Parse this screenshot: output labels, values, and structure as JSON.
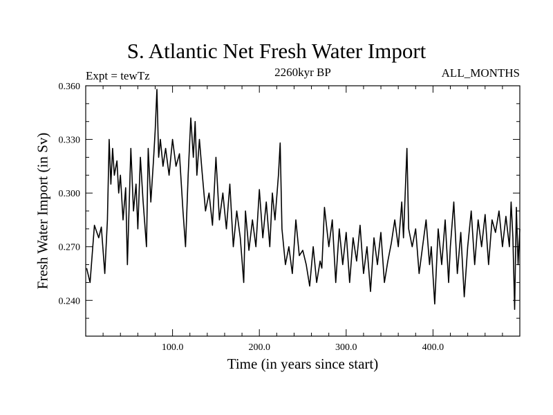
{
  "chart_data": {
    "type": "line",
    "title": "S. Atlantic Net Fresh Water Import",
    "subtitle": "2260kyr BP",
    "left_label": "Expt = tewTz",
    "right_label": "ALL_MONTHS",
    "xlabel": "Time (in years since start)",
    "ylabel": "Fresh Water Import (in Sv)",
    "xlim": [
      0,
      500
    ],
    "ylim": [
      0.22,
      0.36
    ],
    "xticks": [
      100,
      200,
      300,
      400
    ],
    "xtick_labels": [
      "100.0",
      "200.0",
      "300.0",
      "400.0"
    ],
    "yticks": [
      0.24,
      0.27,
      0.3,
      0.33,
      0.36
    ],
    "ytick_labels": [
      "0.240",
      "0.270",
      "0.300",
      "0.330",
      "0.360"
    ],
    "grid": false,
    "series": [
      {
        "name": "Fresh Water Import",
        "x": [
          1,
          5,
          10,
          15,
          18,
          22,
          25,
          27,
          29,
          31,
          33,
          36,
          38,
          40,
          43,
          46,
          48,
          52,
          55,
          58,
          60,
          63,
          66,
          70,
          72,
          75,
          78,
          80,
          82,
          84,
          86,
          89,
          92,
          96,
          100,
          104,
          108,
          112,
          115,
          118,
          121,
          124,
          126,
          128,
          131,
          134,
          138,
          142,
          146,
          150,
          154,
          158,
          162,
          166,
          170,
          174,
          178,
          182,
          184,
          188,
          192,
          196,
          200,
          204,
          208,
          212,
          215,
          218,
          222,
          224,
          226,
          230,
          234,
          238,
          242,
          246,
          250,
          254,
          258,
          262,
          266,
          270,
          272,
          275,
          280,
          284,
          288,
          292,
          296,
          300,
          304,
          308,
          312,
          316,
          320,
          324,
          328,
          332,
          336,
          340,
          344,
          348,
          352,
          356,
          360,
          364,
          366,
          368,
          370,
          372,
          376,
          380,
          384,
          388,
          392,
          396,
          398,
          402,
          406,
          410,
          414,
          418,
          420,
          424,
          428,
          432,
          436,
          440,
          444,
          448,
          452,
          456,
          460,
          464,
          468,
          472,
          476,
          480,
          484,
          488,
          490,
          492,
          494,
          496,
          498,
          500
        ],
        "values": [
          0.258,
          0.25,
          0.282,
          0.275,
          0.281,
          0.255,
          0.285,
          0.33,
          0.305,
          0.325,
          0.31,
          0.318,
          0.3,
          0.31,
          0.285,
          0.303,
          0.26,
          0.325,
          0.29,
          0.305,
          0.28,
          0.32,
          0.296,
          0.27,
          0.325,
          0.295,
          0.318,
          0.335,
          0.358,
          0.32,
          0.33,
          0.315,
          0.325,
          0.31,
          0.33,
          0.315,
          0.322,
          0.29,
          0.27,
          0.31,
          0.342,
          0.32,
          0.34,
          0.31,
          0.33,
          0.312,
          0.29,
          0.3,
          0.282,
          0.32,
          0.285,
          0.3,
          0.28,
          0.305,
          0.27,
          0.29,
          0.275,
          0.25,
          0.29,
          0.268,
          0.285,
          0.27,
          0.302,
          0.275,
          0.295,
          0.27,
          0.3,
          0.285,
          0.31,
          0.328,
          0.28,
          0.26,
          0.27,
          0.255,
          0.285,
          0.265,
          0.268,
          0.26,
          0.248,
          0.27,
          0.25,
          0.262,
          0.258,
          0.292,
          0.27,
          0.285,
          0.25,
          0.28,
          0.26,
          0.278,
          0.25,
          0.275,
          0.262,
          0.282,
          0.255,
          0.27,
          0.245,
          0.275,
          0.26,
          0.278,
          0.25,
          0.262,
          0.272,
          0.285,
          0.27,
          0.295,
          0.275,
          0.3,
          0.325,
          0.28,
          0.27,
          0.28,
          0.255,
          0.27,
          0.285,
          0.26,
          0.27,
          0.238,
          0.28,
          0.26,
          0.285,
          0.25,
          0.27,
          0.295,
          0.255,
          0.278,
          0.242,
          0.27,
          0.29,
          0.26,
          0.285,
          0.27,
          0.288,
          0.26,
          0.285,
          0.278,
          0.29,
          0.27,
          0.287,
          0.27,
          0.295,
          0.275,
          0.235,
          0.292,
          0.26,
          0.28
        ]
      }
    ]
  }
}
